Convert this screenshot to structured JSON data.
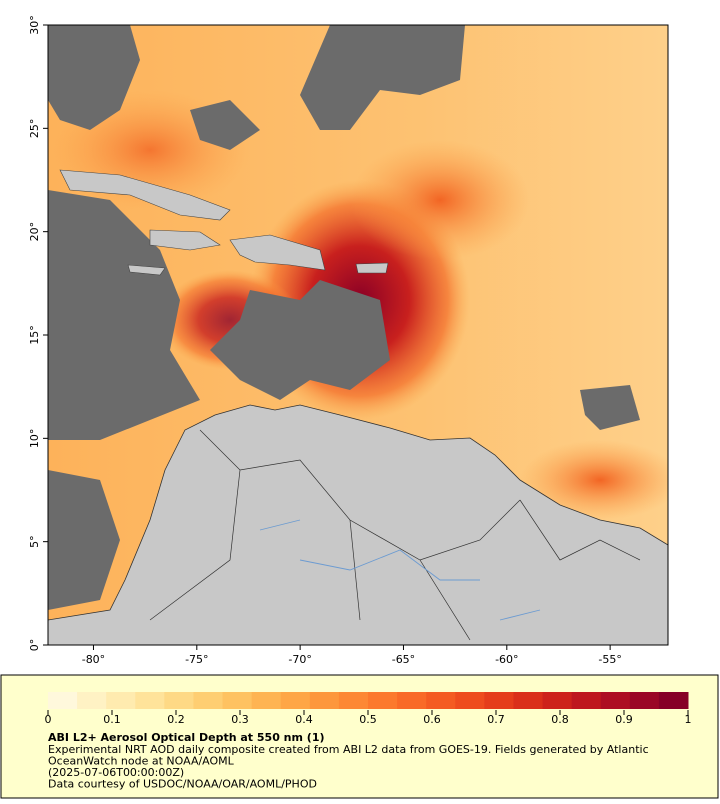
{
  "map": {
    "lon_range": [
      -82.2,
      -52.2
    ],
    "lat_range": [
      0,
      30
    ],
    "lat_ticks": [
      {
        "value": 0,
        "label": "0°"
      },
      {
        "value": 5,
        "label": "5°"
      },
      {
        "value": 10,
        "label": "10°"
      },
      {
        "value": 15,
        "label": "15°"
      },
      {
        "value": 20,
        "label": "20°"
      },
      {
        "value": 25,
        "label": "25°"
      },
      {
        "value": 30,
        "label": "30°"
      }
    ],
    "lon_ticks": [
      {
        "value": -80,
        "label": "-80°"
      },
      {
        "value": -75,
        "label": "-75°"
      },
      {
        "value": -70,
        "label": "-70°"
      },
      {
        "value": -65,
        "label": "-65°"
      },
      {
        "value": -60,
        "label": "-60°"
      },
      {
        "value": -55,
        "label": "-55°"
      }
    ]
  },
  "colorbar": {
    "range": [
      0,
      1
    ],
    "ticks": [
      0,
      0.1,
      0.2,
      0.3,
      0.4,
      0.5,
      0.6,
      0.7,
      0.8,
      0.9,
      1
    ],
    "colors": [
      "#fff8dc",
      "#fff2c4",
      "#ffebaf",
      "#ffe39a",
      "#fed985",
      "#fece72",
      "#fec261",
      "#feb452",
      "#fea646",
      "#fd973c",
      "#fd8834",
      "#fc792d",
      "#f96a27",
      "#f45b22",
      "#ee4c1e",
      "#e53d1b",
      "#da2f1a",
      "#cd221b",
      "#be171e",
      "#ad0e22",
      "#9a0625",
      "#860026"
    ]
  },
  "caption": {
    "title": "ABI L2+ Aerosol Optical Depth at 550 nm (1)",
    "lines": [
      "Experimental NRT AOD daily composite created from ABI L2 data from GOES-19. Fields generated by Atlantic",
      "OceanWatch node at NOAA/AOML",
      "(2025-07-06T00:00:00Z)",
      "Data courtesy of USDOC/NOAA/OAR/AOML/PHOD"
    ]
  }
}
